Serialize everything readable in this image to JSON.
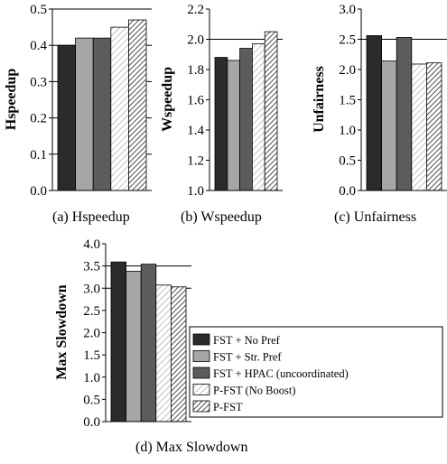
{
  "chart_data": [
    {
      "id": "a",
      "type": "bar",
      "ylabel": "Hspeedup",
      "caption": "(a) Hspeedup",
      "ylim": [
        0.0,
        0.5
      ],
      "yticks": [
        "0.0",
        "0.1",
        "0.2",
        "0.3",
        "0.4",
        "0.5"
      ],
      "grid": "horizontal lines at major ticks",
      "values": [
        0.4,
        0.42,
        0.42,
        0.45,
        0.47
      ]
    },
    {
      "id": "b",
      "type": "bar",
      "ylabel": "Wspeedup",
      "caption": "(b) Wspeedup",
      "ylim": [
        1.0,
        2.2
      ],
      "yticks": [
        "1.0",
        "1.2",
        "1.4",
        "1.6",
        "1.8",
        "2.0",
        "2.2"
      ],
      "grid": "horizontal line at 2.0",
      "values": [
        1.88,
        1.86,
        1.94,
        1.97,
        2.05
      ]
    },
    {
      "id": "c",
      "type": "bar",
      "ylabel": "Unfairness",
      "caption": "(c) Unfairness",
      "ylim": [
        0.0,
        3.0
      ],
      "yticks": [
        "0.0",
        "0.5",
        "1.0",
        "1.5",
        "2.0",
        "2.5",
        "3.0"
      ],
      "grid": "horizontal line at 2.5",
      "values": [
        2.56,
        2.14,
        2.53,
        2.09,
        2.11
      ]
    },
    {
      "id": "d",
      "type": "bar",
      "ylabel": "Max Slowdown",
      "caption": "(d) Max Slowdown",
      "ylim": [
        0.0,
        4.0
      ],
      "yticks": [
        "0.0",
        "0.5",
        "1.0",
        "1.5",
        "2.0",
        "2.5",
        "3.0",
        "3.5",
        "4.0"
      ],
      "grid": "horizontal lines at 3.0 and 3.5",
      "values": [
        3.59,
        3.38,
        3.54,
        3.07,
        3.03
      ]
    }
  ],
  "series": [
    {
      "name": "FST + No Pref",
      "fill": "#2b2b2b"
    },
    {
      "name": "FST + Str. Pref",
      "fill": "#a6a6a6"
    },
    {
      "name": "FST + HPAC (uncoordinated)",
      "fill": "#5c5c5c"
    },
    {
      "name": "P-FST (No Boost)",
      "fill": "hatch-light"
    },
    {
      "name": "P-FST",
      "fill": "hatch-dense"
    }
  ],
  "legend_position": "right of panel (d)"
}
